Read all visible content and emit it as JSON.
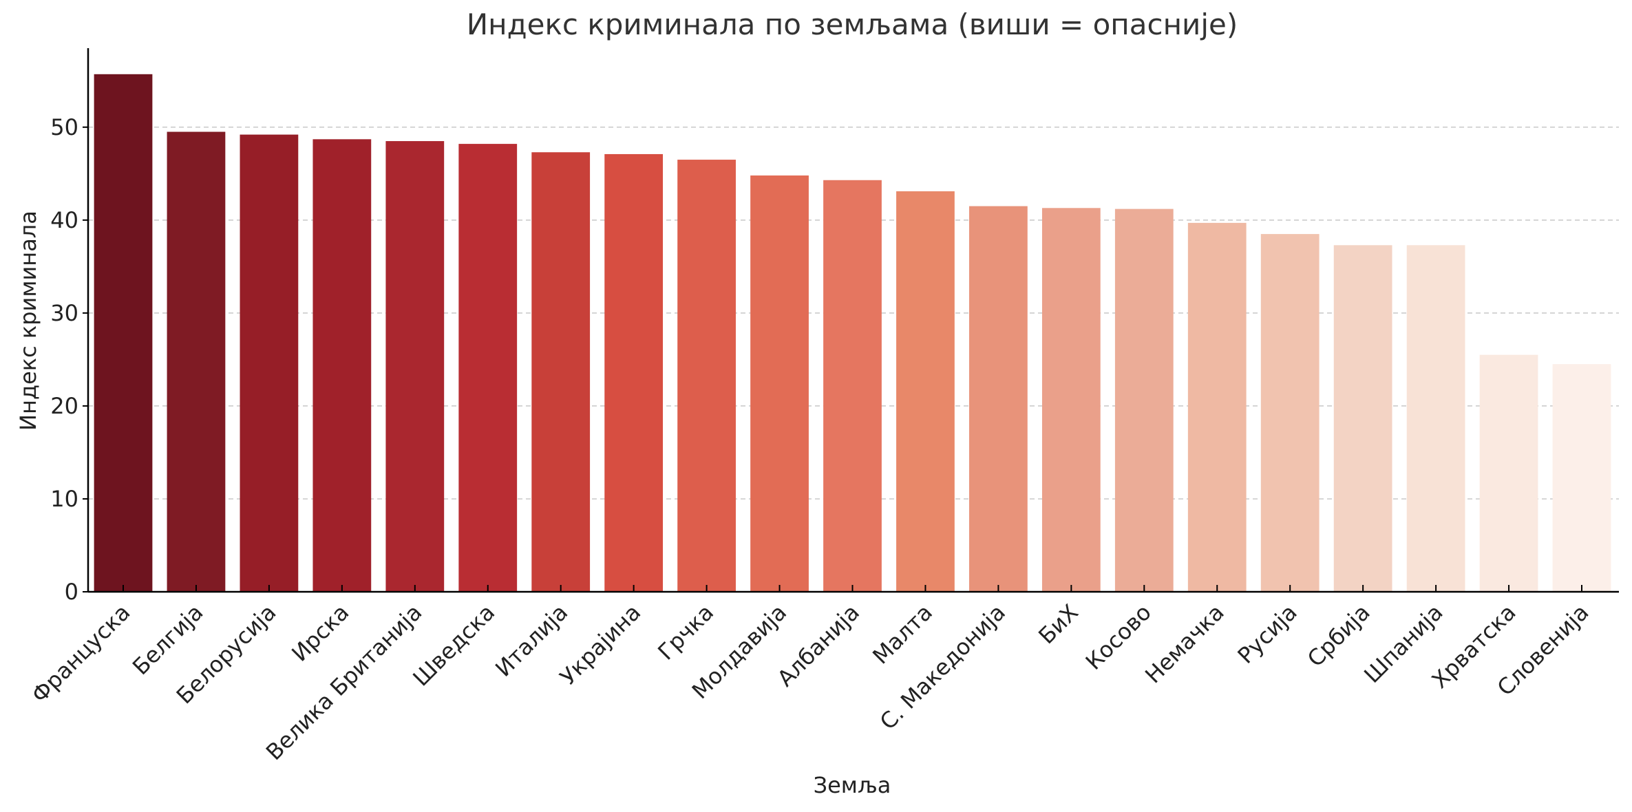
{
  "chart_data": {
    "type": "bar",
    "title": "Индекс криминала по земљама (виши = опасније)",
    "xlabel": "Земља",
    "ylabel": "Индекс криминала",
    "ylim": [
      0,
      58.5
    ],
    "yticks": [
      0,
      10,
      20,
      30,
      40,
      50
    ],
    "grid": "y",
    "categories": [
      "Француска",
      "Белгија",
      "Белорусија",
      "Ирска",
      "Велика Британија",
      "Шведска",
      "Италија",
      "Украјина",
      "Грчка",
      "Молдавија",
      "Албанија",
      "Малта",
      "С. Македонија",
      "БиХ",
      "Косово",
      "Немачка",
      "Русија",
      "Србија",
      "Шпанија",
      "Хрватска",
      "Словенија"
    ],
    "values": [
      55.7,
      49.5,
      49.2,
      48.7,
      48.5,
      48.2,
      47.3,
      47.1,
      46.5,
      44.8,
      44.3,
      43.1,
      41.5,
      41.3,
      41.2,
      39.7,
      38.5,
      37.3,
      37.3,
      25.5,
      24.5
    ],
    "colors": [
      "#6e141f",
      "#7f1b24",
      "#961e27",
      "#a0212a",
      "#aa272f",
      "#b92d33",
      "#c84039",
      "#d74e41",
      "#dd5e4c",
      "#e26c55",
      "#e57660",
      "#e88869",
      "#e8937a",
      "#eaa08a",
      "#ebac97",
      "#efb9a3",
      "#f1c3af",
      "#f3d3c4",
      "#f8e2d6",
      "#fae9e0",
      "#fcefe9"
    ]
  }
}
